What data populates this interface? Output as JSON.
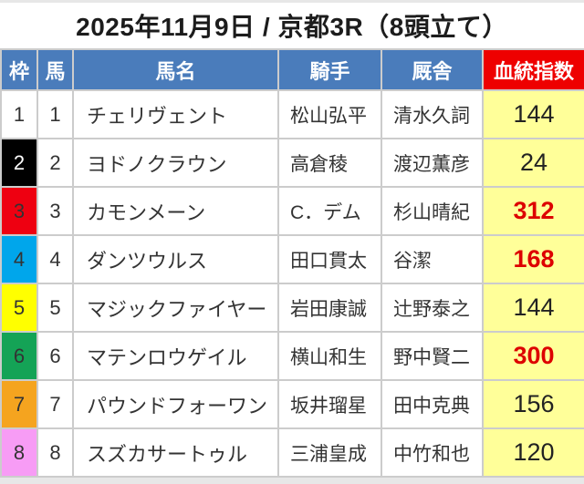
{
  "title": "2025年11月9日 / 京都3R（8頭立て）",
  "colors": {
    "header_blue": "#4a7cbb",
    "header_red": "#ee0000",
    "index_cell_yellow": "#ffff99",
    "hot_index_red": "#dd0000",
    "grid_border": "#cccccc",
    "page_background": "#e7e7e7"
  },
  "table": {
    "headers": [
      "枠",
      "馬",
      "馬名",
      "騎手",
      "厩舎",
      "血統指数"
    ],
    "rows": [
      {
        "waku": "1",
        "waku_bg": "#ffffff",
        "waku_fg": "#333333",
        "uma": "1",
        "name": "チェリヴェント",
        "jockey": "松山弘平",
        "stable": "清水久詞",
        "index": "144",
        "index_hot": false
      },
      {
        "waku": "2",
        "waku_bg": "#000000",
        "waku_fg": "#ffffff",
        "uma": "2",
        "name": "ヨドノクラウン",
        "jockey": "高倉稜",
        "stable": "渡辺薫彦",
        "index": "24",
        "index_hot": false
      },
      {
        "waku": "3",
        "waku_bg": "#ee0011",
        "waku_fg": "#333333",
        "uma": "3",
        "name": "カモンメーン",
        "jockey": "C．デム",
        "stable": "杉山晴紀",
        "index": "312",
        "index_hot": true
      },
      {
        "waku": "4",
        "waku_bg": "#00a6eb",
        "waku_fg": "#333333",
        "uma": "4",
        "name": "ダンツウルス",
        "jockey": "田口貫太",
        "stable": "谷潔",
        "index": "168",
        "index_hot": true
      },
      {
        "waku": "5",
        "waku_bg": "#ffff00",
        "waku_fg": "#333333",
        "uma": "5",
        "name": "マジックファイヤー",
        "jockey": "岩田康誠",
        "stable": "辻野泰之",
        "index": "144",
        "index_hot": false
      },
      {
        "waku": "6",
        "waku_bg": "#14a356",
        "waku_fg": "#333333",
        "uma": "6",
        "name": "マテンロウゲイル",
        "jockey": "横山和生",
        "stable": "野中賢二",
        "index": "300",
        "index_hot": true
      },
      {
        "waku": "7",
        "waku_bg": "#f5a41f",
        "waku_fg": "#333333",
        "uma": "7",
        "name": "パウンドフォーワン",
        "jockey": "坂井瑠星",
        "stable": "田中克典",
        "index": "156",
        "index_hot": false
      },
      {
        "waku": "8",
        "waku_bg": "#f79cf5",
        "waku_fg": "#333333",
        "uma": "8",
        "name": "スズカサートゥル",
        "jockey": "三浦皇成",
        "stable": "中竹和也",
        "index": "120",
        "index_hot": false
      }
    ]
  }
}
